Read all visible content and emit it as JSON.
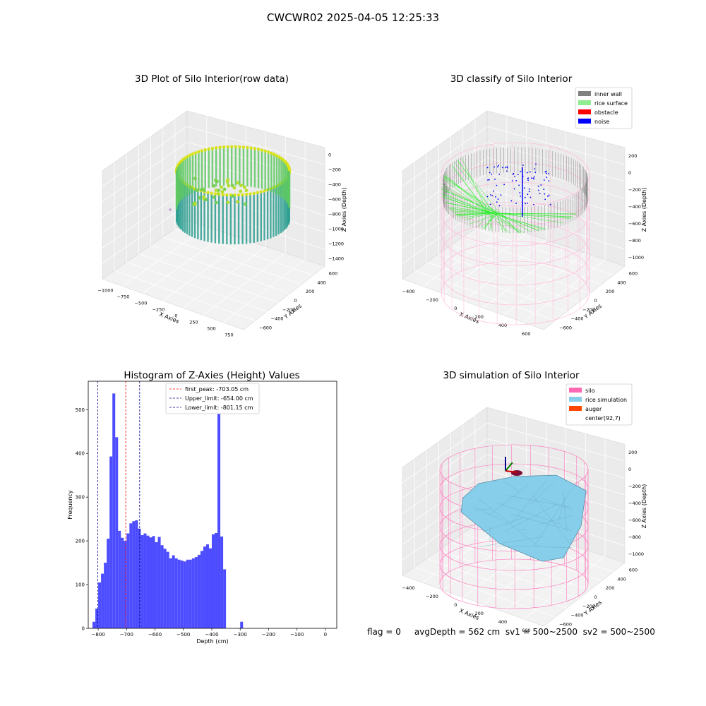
{
  "suptitle": "CWCWR02 2025-04-05 12:25:33",
  "panels": {
    "raw": {
      "title": "3D Plot of Silo Interior(row data)",
      "xlabel": "X Axies",
      "ylabel": "Y Axies",
      "zlabel": "Z Axies (Depth)",
      "xticks": [
        "−1000",
        "−750",
        "−500",
        "−250",
        "0",
        "250",
        "500",
        "750"
      ],
      "yticks": [
        "−600",
        "−400",
        "−200",
        "0",
        "200",
        "400",
        "600"
      ],
      "zticks": [
        "0",
        "−200",
        "−400",
        "−600",
        "−800",
        "−1000",
        "−1200",
        "−1400"
      ]
    },
    "classify": {
      "title": "3D classify of Silo Interior",
      "xlabel": "X Axies",
      "ylabel": "Y Axies",
      "zlabel": "Z Axies (Depth)",
      "xticks": [
        "−400",
        "−200",
        "0",
        "200",
        "400",
        "600"
      ],
      "yticks": [
        "−600",
        "−400",
        "−200",
        "0",
        "200",
        "400",
        "600"
      ],
      "zticks": [
        "200",
        "0",
        "−200",
        "−400",
        "−600",
        "−800",
        "−1000"
      ],
      "legend": [
        {
          "label": "inner wall",
          "color": "#808080"
        },
        {
          "label": "rice surface",
          "color": "#90ee90"
        },
        {
          "label": "obstacle",
          "color": "#ff0000"
        },
        {
          "label": "noise",
          "color": "#0000ff"
        }
      ]
    },
    "simulation": {
      "title": "3D simulation of Silo Interior",
      "xlabel": "X Axies",
      "ylabel": "Y Axies",
      "zlabel": "Z Axies (Depth)",
      "xticks": [
        "−400",
        "−200",
        "0",
        "200",
        "400",
        "600"
      ],
      "yticks": [
        "−600",
        "−400",
        "−200",
        "0",
        "200",
        "400",
        "600"
      ],
      "zticks": [
        "200",
        "0",
        "−200",
        "−400",
        "−600",
        "−800",
        "−1000"
      ],
      "legend": [
        {
          "label": "silo",
          "color": "#ff69b4"
        },
        {
          "label": "rice simulation",
          "color": "#87ceeb"
        },
        {
          "label": "auger",
          "color": "#ff4500"
        },
        {
          "label": "center(92,7)",
          "color": "none"
        }
      ]
    }
  },
  "chart_data": [
    {
      "type": "bar",
      "title": "Histogram of Z-Axies (Height) Values",
      "xlabel": "Depth (cm)",
      "ylabel": "Frequency",
      "xlim": [
        -835,
        40
      ],
      "ylim": [
        0,
        565
      ],
      "xticks": [
        -800,
        -700,
        -600,
        -500,
        -400,
        -300,
        -200,
        -100,
        0
      ],
      "yticks": [
        0,
        100,
        200,
        300,
        400,
        500
      ],
      "bar_color": "#4d4dff",
      "bin_start": -820,
      "bin_width": 10,
      "values": [
        15,
        45,
        105,
        125,
        150,
        205,
        393,
        537,
        437,
        223,
        207,
        200,
        217,
        240,
        245,
        247,
        228,
        213,
        217,
        212,
        208,
        211,
        197,
        209,
        190,
        182,
        175,
        160,
        167,
        160,
        157,
        155,
        153,
        157,
        157,
        160,
        163,
        168,
        177,
        187,
        192,
        183,
        215,
        218,
        494,
        210,
        135,
        0,
        0,
        0,
        0,
        0,
        15
      ],
      "lines": [
        {
          "label": "first_peak: -703.05 cm",
          "x": -703.05,
          "color": "#ff0000"
        },
        {
          "label": "Upper_limit: -654.00 cm",
          "x": -654.0,
          "color": "#00008b"
        },
        {
          "label": "Lower_limit: -801.15 cm",
          "x": -801.15,
          "color": "#00008b"
        }
      ],
      "legend_position": "top-center"
    }
  ],
  "footer": {
    "text": "flag = 0     avgDepth = 562 cm  sv1 = 500~2500  sv2 = 500~2500"
  }
}
